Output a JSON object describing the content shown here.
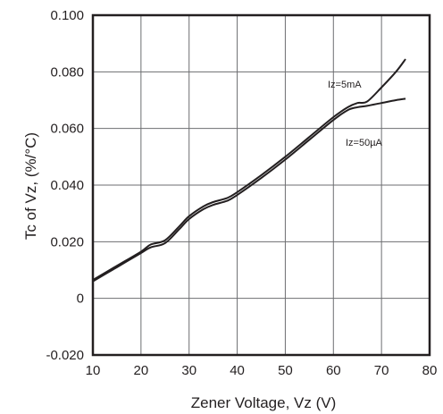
{
  "chart_data": {
    "type": "line",
    "xlabel": "Zener Voltage, Vz (V)",
    "ylabel": "Tc of Vz, (%/°C)",
    "xlim": [
      10,
      80
    ],
    "ylim": [
      -0.02,
      0.1
    ],
    "x_ticks": [
      "10",
      "20",
      "30",
      "40",
      "50",
      "60",
      "70",
      "80"
    ],
    "y_ticks": [
      "-0.020",
      "0",
      "0.020",
      "0.040",
      "0.060",
      "0.080",
      "0.100"
    ],
    "grid": true,
    "annotations": [
      "Iz=5mA",
      "Iz=50µA"
    ],
    "series": [
      {
        "name": "Iz=5mA",
        "x": [
          10,
          15,
          20,
          22,
          25,
          28,
          30,
          33,
          35,
          38,
          40,
          45,
          50,
          55,
          60,
          63,
          65,
          67,
          70,
          73,
          75
        ],
        "y": [
          0.0065,
          0.0115,
          0.0165,
          0.019,
          0.0205,
          0.0255,
          0.029,
          0.0325,
          0.034,
          0.0355,
          0.0375,
          0.0435,
          0.05,
          0.057,
          0.064,
          0.0675,
          0.069,
          0.0695,
          0.0745,
          0.08,
          0.0845
        ]
      },
      {
        "name": "Iz=50µA",
        "x": [
          10,
          15,
          20,
          22,
          25,
          28,
          30,
          33,
          35,
          38,
          40,
          45,
          50,
          55,
          60,
          63,
          65,
          67,
          70,
          73,
          75
        ],
        "y": [
          0.006,
          0.011,
          0.016,
          0.018,
          0.0195,
          0.0245,
          0.028,
          0.0315,
          0.033,
          0.0345,
          0.0365,
          0.0425,
          0.049,
          0.056,
          0.063,
          0.0665,
          0.0675,
          0.068,
          0.069,
          0.07,
          0.0705
        ]
      }
    ]
  }
}
